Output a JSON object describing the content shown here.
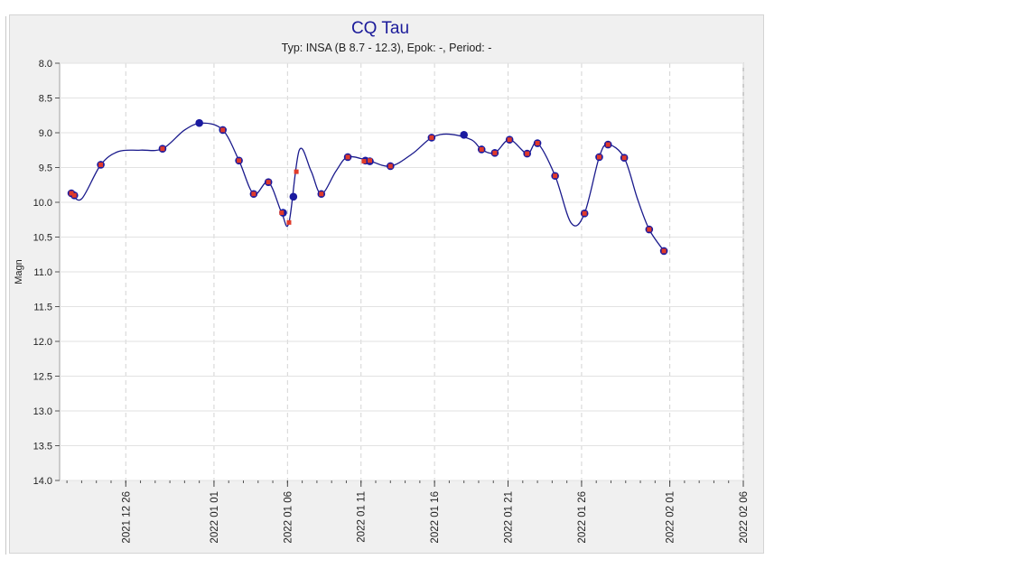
{
  "chart_data": {
    "type": "scatter",
    "title": "CQ Tau",
    "subtitle": "Typ: INSA (B 8.7 - 12.3), Epok: -, Period: -",
    "ylabel": "Magn",
    "xlabel": "",
    "ylim": [
      8.0,
      14.0
    ],
    "y_inverted": true,
    "y_ticks": [
      "8.0",
      "8.5",
      "9.0",
      "9.5",
      "10.0",
      "10.5",
      "11.0",
      "11.5",
      "12.0",
      "12.5",
      "13.0",
      "13.5",
      "14.0"
    ],
    "x_start_date": "2021-12-21",
    "xlim_days": [
      0.5,
      47.0
    ],
    "x_ticks": [
      {
        "day": 5,
        "label": "2021 12 26"
      },
      {
        "day": 11,
        "label": "2022 01 01"
      },
      {
        "day": 16,
        "label": "2022 01 06"
      },
      {
        "day": 21,
        "label": "2022 01 11"
      },
      {
        "day": 26,
        "label": "2022 01 16"
      },
      {
        "day": 31,
        "label": "2022 01 21"
      },
      {
        "day": 36,
        "label": "2022 01 26"
      },
      {
        "day": 42,
        "label": "2022 02 01"
      },
      {
        "day": 47,
        "label": "2022 02 06"
      }
    ],
    "grid": true,
    "colors": {
      "observations": "#1a1aa0",
      "fit": "#1a1a8c",
      "fit_points": "#e03a2a"
    },
    "series": [
      {
        "name": "observations",
        "points": [
          [
            1.3,
            9.87
          ],
          [
            1.5,
            9.9
          ],
          [
            3.3,
            9.46
          ],
          [
            7.5,
            9.23
          ],
          [
            10.0,
            8.86
          ],
          [
            11.6,
            8.96
          ],
          [
            12.7,
            9.4
          ],
          [
            13.7,
            9.88
          ],
          [
            14.7,
            9.71
          ],
          [
            15.7,
            10.15
          ],
          [
            16.4,
            9.92
          ],
          [
            18.3,
            9.88
          ],
          [
            20.1,
            9.35
          ],
          [
            21.3,
            9.4
          ],
          [
            21.6,
            9.41
          ],
          [
            23.0,
            9.48
          ],
          [
            25.8,
            9.07
          ],
          [
            28.0,
            9.03
          ],
          [
            29.2,
            9.24
          ],
          [
            30.1,
            9.29
          ],
          [
            31.1,
            9.1
          ],
          [
            32.3,
            9.3
          ],
          [
            33.0,
            9.15
          ],
          [
            34.2,
            9.62
          ],
          [
            36.2,
            10.16
          ],
          [
            37.2,
            9.35
          ],
          [
            37.8,
            9.17
          ],
          [
            38.9,
            9.36
          ],
          [
            40.6,
            10.39
          ],
          [
            41.6,
            10.7
          ]
        ]
      },
      {
        "name": "fit_points",
        "points": [
          [
            1.3,
            9.87
          ],
          [
            1.5,
            9.9
          ],
          [
            3.3,
            9.46
          ],
          [
            7.5,
            9.23
          ],
          [
            11.6,
            8.96
          ],
          [
            12.7,
            9.4
          ],
          [
            13.7,
            9.88
          ],
          [
            14.7,
            9.71
          ],
          [
            15.6,
            10.15
          ],
          [
            16.1,
            10.29
          ],
          [
            16.6,
            9.56
          ],
          [
            18.3,
            9.88
          ],
          [
            20.1,
            9.35
          ],
          [
            21.2,
            9.41
          ],
          [
            21.6,
            9.4
          ],
          [
            23.0,
            9.48
          ],
          [
            25.8,
            9.07
          ],
          [
            29.2,
            9.24
          ],
          [
            30.1,
            9.29
          ],
          [
            31.1,
            9.1
          ],
          [
            32.3,
            9.3
          ],
          [
            33.0,
            9.15
          ],
          [
            34.2,
            9.62
          ],
          [
            36.2,
            10.16
          ],
          [
            37.2,
            9.35
          ],
          [
            37.8,
            9.17
          ],
          [
            38.9,
            9.36
          ],
          [
            40.6,
            10.39
          ],
          [
            41.6,
            10.7
          ]
        ]
      },
      {
        "name": "fit",
        "points": [
          [
            1.3,
            9.87
          ],
          [
            2.0,
            9.95
          ],
          [
            3.3,
            9.46
          ],
          [
            4.5,
            9.27
          ],
          [
            6.0,
            9.25
          ],
          [
            7.5,
            9.23
          ],
          [
            9.0,
            8.96
          ],
          [
            10.2,
            8.86
          ],
          [
            11.6,
            8.96
          ],
          [
            12.7,
            9.4
          ],
          [
            13.7,
            9.88
          ],
          [
            14.7,
            9.71
          ],
          [
            15.6,
            10.15
          ],
          [
            16.1,
            10.29
          ],
          [
            16.8,
            9.25
          ],
          [
            17.6,
            9.55
          ],
          [
            18.3,
            9.88
          ],
          [
            19.3,
            9.55
          ],
          [
            20.1,
            9.35
          ],
          [
            21.5,
            9.4
          ],
          [
            23.0,
            9.48
          ],
          [
            24.5,
            9.3
          ],
          [
            25.8,
            9.07
          ],
          [
            27.0,
            9.02
          ],
          [
            28.5,
            9.1
          ],
          [
            29.2,
            9.24
          ],
          [
            30.1,
            9.29
          ],
          [
            31.1,
            9.1
          ],
          [
            32.3,
            9.3
          ],
          [
            33.0,
            9.15
          ],
          [
            34.2,
            9.62
          ],
          [
            35.3,
            10.3
          ],
          [
            36.2,
            10.16
          ],
          [
            37.2,
            9.35
          ],
          [
            37.8,
            9.17
          ],
          [
            38.9,
            9.36
          ],
          [
            39.8,
            9.95
          ],
          [
            40.6,
            10.39
          ],
          [
            41.6,
            10.7
          ]
        ]
      }
    ]
  }
}
